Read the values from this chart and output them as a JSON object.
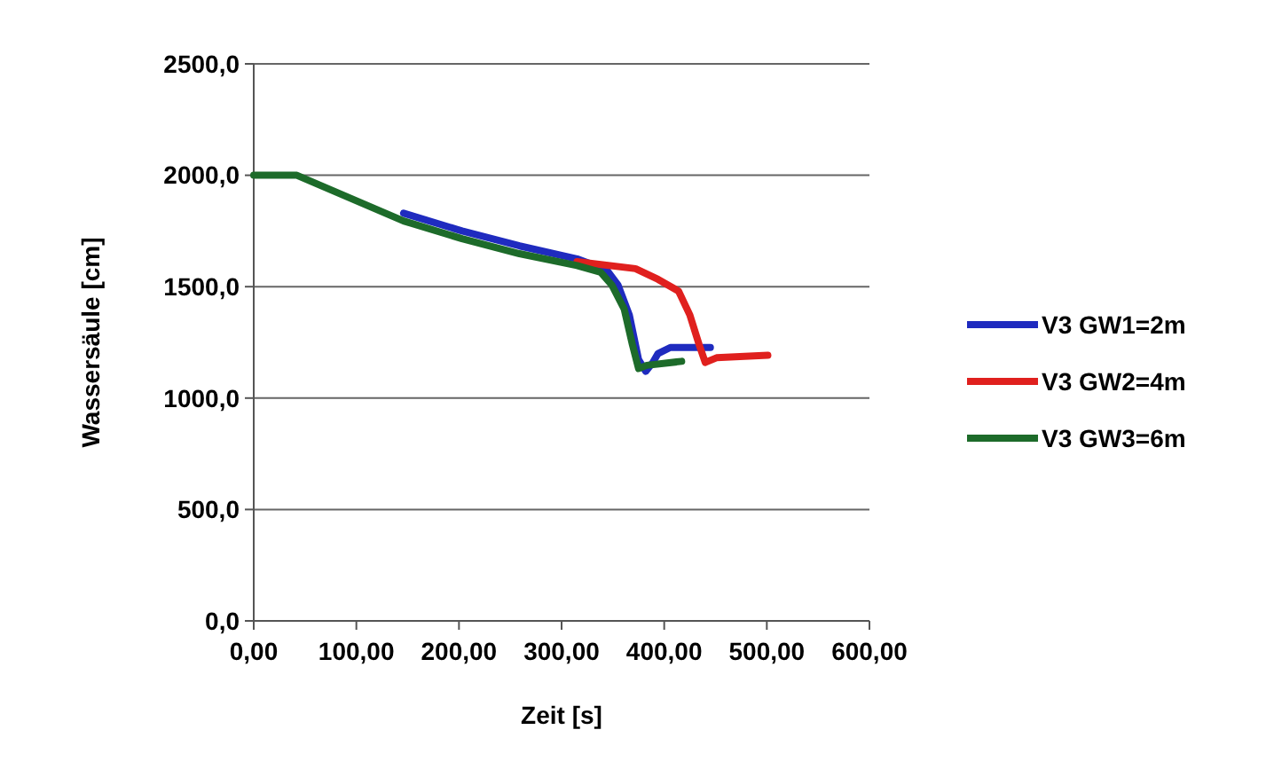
{
  "chart_data": {
    "type": "line",
    "xlabel": "Zeit [s]",
    "ylabel": "Wassersäule [cm]",
    "xlim": [
      0,
      600
    ],
    "ylim": [
      0,
      2500
    ],
    "xticks": [
      {
        "value": 0,
        "label": "0,00"
      },
      {
        "value": 100,
        "label": "100,00"
      },
      {
        "value": 200,
        "label": "200,00"
      },
      {
        "value": 300,
        "label": "300,00"
      },
      {
        "value": 400,
        "label": "400,00"
      },
      {
        "value": 500,
        "label": "500,00"
      },
      {
        "value": 600,
        "label": "600,00"
      }
    ],
    "yticks": [
      {
        "value": 0,
        "label": "0,0"
      },
      {
        "value": 500,
        "label": "500,0"
      },
      {
        "value": 1000,
        "label": "1000,0"
      },
      {
        "value": 1500,
        "label": "1500,0"
      },
      {
        "value": 2000,
        "label": "2000,0"
      },
      {
        "value": 2500,
        "label": "2500,0"
      }
    ],
    "grid": "y",
    "legend": "right",
    "marker": "none",
    "line_style": "solid",
    "series": [
      {
        "name": "V3 GW1=2m",
        "color": "#1f2bbf",
        "x": [
          146,
          203,
          259,
          315,
          344,
          355,
          366,
          375,
          382,
          389,
          394,
          406,
          445
        ],
        "values": [
          1830,
          1750,
          1683,
          1625,
          1575,
          1507,
          1373,
          1173,
          1120,
          1160,
          1200,
          1227,
          1227
        ]
      },
      {
        "name": "V3 GW2=4m",
        "color": "#e0201e",
        "x": [
          315,
          372,
          394,
          414,
          425,
          434,
          440,
          451,
          501
        ],
        "values": [
          1612,
          1581,
          1533,
          1480,
          1373,
          1240,
          1160,
          1181,
          1192
        ]
      },
      {
        "name": "V3 GW3=6m",
        "color": "#1d6b2a",
        "x": [
          0,
          42,
          146,
          203,
          259,
          315,
          338,
          349,
          361,
          369,
          375,
          383,
          417
        ],
        "values": [
          2000,
          2000,
          1795,
          1715,
          1648,
          1595,
          1565,
          1507,
          1400,
          1240,
          1133,
          1147,
          1165
        ]
      }
    ]
  }
}
